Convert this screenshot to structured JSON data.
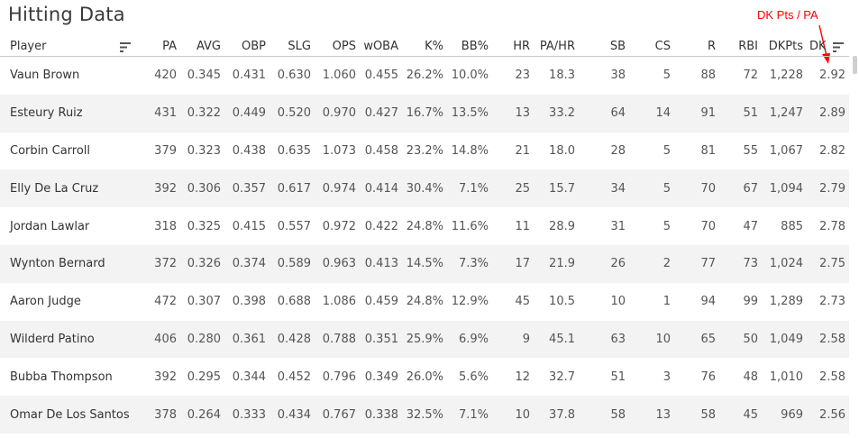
{
  "title": "Hitting Data",
  "annotation": "DK Pts / PA",
  "columns": [
    {
      "key": "player",
      "label": "Player"
    },
    {
      "key": "pa",
      "label": "PA"
    },
    {
      "key": "avg",
      "label": "AVG"
    },
    {
      "key": "obp",
      "label": "OBP"
    },
    {
      "key": "slg",
      "label": "SLG"
    },
    {
      "key": "ops",
      "label": "OPS"
    },
    {
      "key": "woba",
      "label": "wOBA"
    },
    {
      "key": "k",
      "label": "K%"
    },
    {
      "key": "bb",
      "label": "BB%"
    },
    {
      "key": "hr",
      "label": "HR"
    },
    {
      "key": "pahr",
      "label": "PA/HR"
    },
    {
      "key": "sb",
      "label": "SB"
    },
    {
      "key": "cs",
      "label": "CS"
    },
    {
      "key": "r",
      "label": "R"
    },
    {
      "key": "rbi",
      "label": "RBI"
    },
    {
      "key": "dkpts",
      "label": "DKPts"
    },
    {
      "key": "dkppa",
      "label": "DK"
    }
  ],
  "rows": [
    [
      "Vaun Brown",
      "420",
      "0.345",
      "0.431",
      "0.630",
      "1.060",
      "0.455",
      "26.2%",
      "10.0%",
      "23",
      "18.3",
      "38",
      "5",
      "88",
      "72",
      "1,228",
      "2.92"
    ],
    [
      "Esteury Ruiz",
      "431",
      "0.322",
      "0.449",
      "0.520",
      "0.970",
      "0.427",
      "16.7%",
      "13.5%",
      "13",
      "33.2",
      "64",
      "14",
      "91",
      "51",
      "1,247",
      "2.89"
    ],
    [
      "Corbin Carroll",
      "379",
      "0.323",
      "0.438",
      "0.635",
      "1.073",
      "0.458",
      "23.2%",
      "14.8%",
      "21",
      "18.0",
      "28",
      "5",
      "81",
      "55",
      "1,067",
      "2.82"
    ],
    [
      "Elly De La Cruz",
      "392",
      "0.306",
      "0.357",
      "0.617",
      "0.974",
      "0.414",
      "30.4%",
      "7.1%",
      "25",
      "15.7",
      "34",
      "5",
      "70",
      "67",
      "1,094",
      "2.79"
    ],
    [
      "Jordan Lawlar",
      "318",
      "0.325",
      "0.415",
      "0.557",
      "0.972",
      "0.422",
      "24.8%",
      "11.6%",
      "11",
      "28.9",
      "31",
      "5",
      "70",
      "47",
      "885",
      "2.78"
    ],
    [
      "Wynton Bernard",
      "372",
      "0.326",
      "0.374",
      "0.589",
      "0.963",
      "0.413",
      "14.5%",
      "7.3%",
      "17",
      "21.9",
      "26",
      "2",
      "77",
      "73",
      "1,024",
      "2.75"
    ],
    [
      "Aaron Judge",
      "472",
      "0.307",
      "0.398",
      "0.688",
      "1.086",
      "0.459",
      "24.8%",
      "12.9%",
      "45",
      "10.5",
      "10",
      "1",
      "94",
      "99",
      "1,289",
      "2.73"
    ],
    [
      "Wilderd Patino",
      "406",
      "0.280",
      "0.361",
      "0.428",
      "0.788",
      "0.351",
      "25.9%",
      "6.9%",
      "9",
      "45.1",
      "63",
      "10",
      "65",
      "50",
      "1,049",
      "2.58"
    ],
    [
      "Bubba Thompson",
      "392",
      "0.295",
      "0.344",
      "0.452",
      "0.796",
      "0.349",
      "26.0%",
      "5.6%",
      "12",
      "32.7",
      "51",
      "3",
      "76",
      "48",
      "1,010",
      "2.58"
    ],
    [
      "Omar De Los Santos",
      "378",
      "0.264",
      "0.333",
      "0.434",
      "0.767",
      "0.338",
      "32.5%",
      "7.1%",
      "10",
      "37.8",
      "58",
      "13",
      "58",
      "45",
      "969",
      "2.56"
    ]
  ]
}
